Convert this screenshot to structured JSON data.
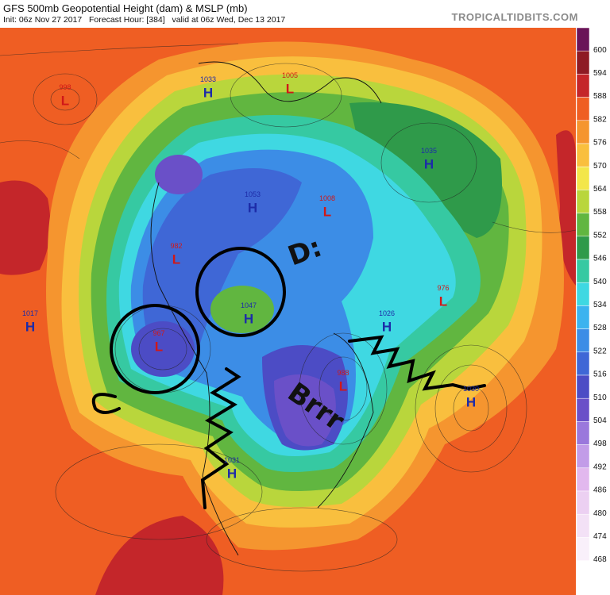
{
  "header": {
    "title": "GFS 500mb Geopotential Height (dam) & MSLP (mb)",
    "subtitle": "Init: 06z Nov 27 2017   Forecast Hour: [384]   valid at 06z Wed, Dec 13 2017",
    "source": "TROPICALTIDBITS.COM"
  },
  "colorbar": {
    "labels": [
      600,
      594,
      588,
      582,
      576,
      570,
      564,
      558,
      552,
      546,
      540,
      534,
      528,
      522,
      516,
      510,
      504,
      498,
      492,
      486,
      480,
      474,
      468
    ],
    "colors": [
      "#6a1458",
      "#8e1b24",
      "#c4262a",
      "#ef5e23",
      "#f5952f",
      "#f9bf3e",
      "#f3e64a",
      "#b9d63c",
      "#61b640",
      "#2f9a4a",
      "#36c9a2",
      "#3fd8e2",
      "#3cb3ef",
      "#3c8de6",
      "#3f67d6",
      "#4c4cc5",
      "#6a50c8",
      "#9a78dc",
      "#c29ce8",
      "#e2b8ee",
      "#ecd0f2",
      "#f3e1f6",
      "#f9f0fa"
    ]
  },
  "centers": [
    {
      "kind": "L",
      "value": "998"
    },
    {
      "kind": "H",
      "value": "1033"
    },
    {
      "kind": "L",
      "value": "1005"
    },
    {
      "kind": "H",
      "value": "1035"
    },
    {
      "kind": "H",
      "value": "1053"
    },
    {
      "kind": "L",
      "value": "1008"
    },
    {
      "kind": "L",
      "value": "982"
    },
    {
      "kind": "H",
      "value": "1047"
    },
    {
      "kind": "L",
      "value": "967"
    },
    {
      "kind": "H",
      "value": "1017"
    },
    {
      "kind": "H",
      "value": "1026"
    },
    {
      "kind": "L",
      "value": "976"
    },
    {
      "kind": "L",
      "value": "988"
    },
    {
      "kind": "H",
      "value": "1030"
    },
    {
      "kind": "H",
      "value": "1031"
    }
  ],
  "annotations": [
    "D:",
    "Brrr"
  ]
}
